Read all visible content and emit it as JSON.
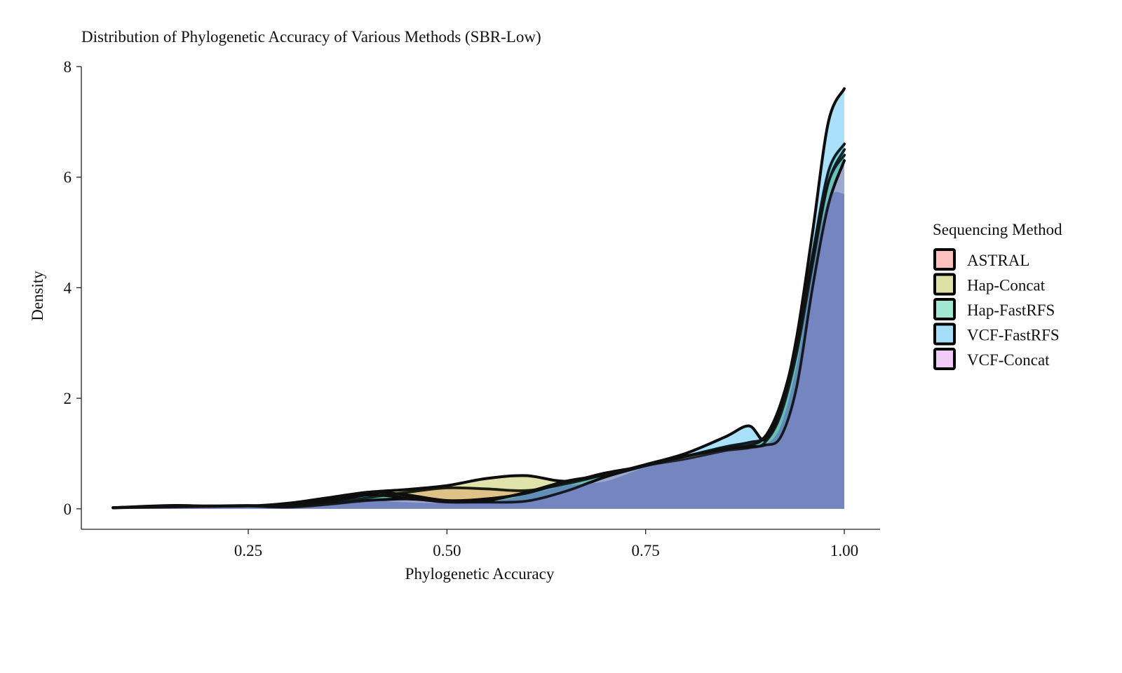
{
  "chart_data": {
    "type": "area",
    "subtype": "density",
    "title": "Distribution of Phylogenetic Accuracy of Various Methods (SBR-Low)",
    "xlabel": "Phylogenetic Accuracy",
    "ylabel": "Density",
    "xlim": [
      0.04,
      1.045
    ],
    "ylim": [
      -0.37,
      8.0
    ],
    "x_ticks": [
      0.25,
      0.5,
      0.75,
      1.0
    ],
    "x_tick_labels": [
      "0.25",
      "0.50",
      "0.75",
      "1.00"
    ],
    "y_ticks": [
      0,
      2,
      4,
      6,
      8
    ],
    "y_tick_labels": [
      "0",
      "2",
      "4",
      "6",
      "8"
    ],
    "grid": false,
    "legend": {
      "title": "Sequencing Method",
      "position": "right",
      "items": [
        "ASTRAL",
        "Hap-Concat",
        "Hap-FastRFS",
        "VCF-FastRFS",
        "VCF-Concat"
      ]
    },
    "series": [
      {
        "name": "ASTRAL",
        "fill": "#f8766d",
        "x": [
          0.08,
          0.15,
          0.2,
          0.25,
          0.3,
          0.35,
          0.4,
          0.45,
          0.5,
          0.55,
          0.6,
          0.65,
          0.7,
          0.75,
          0.8,
          0.85,
          0.88,
          0.9,
          0.92,
          0.94,
          0.96,
          0.98,
          1.0
        ],
        "y": [
          0.02,
          0.05,
          0.05,
          0.06,
          0.05,
          0.12,
          0.2,
          0.3,
          0.38,
          0.36,
          0.33,
          0.45,
          0.62,
          0.78,
          0.9,
          1.05,
          1.1,
          1.2,
          1.7,
          2.8,
          4.4,
          5.9,
          6.5
        ]
      },
      {
        "name": "Hap-Concat",
        "fill": "#b6bc3a",
        "x": [
          0.08,
          0.15,
          0.2,
          0.25,
          0.3,
          0.35,
          0.4,
          0.45,
          0.5,
          0.55,
          0.6,
          0.65,
          0.7,
          0.75,
          0.8,
          0.85,
          0.88,
          0.9,
          0.92,
          0.94,
          0.96,
          0.98,
          1.0
        ],
        "y": [
          0.02,
          0.04,
          0.05,
          0.05,
          0.1,
          0.2,
          0.3,
          0.35,
          0.42,
          0.55,
          0.6,
          0.5,
          0.65,
          0.78,
          0.95,
          1.12,
          1.2,
          1.3,
          1.8,
          2.9,
          4.5,
          5.9,
          6.4
        ]
      },
      {
        "name": "Hap-FastRFS",
        "fill": "#2fcc9b",
        "x": [
          0.08,
          0.15,
          0.2,
          0.25,
          0.3,
          0.35,
          0.4,
          0.45,
          0.5,
          0.55,
          0.6,
          0.65,
          0.7,
          0.75,
          0.8,
          0.85,
          0.88,
          0.9,
          0.92,
          0.94,
          0.96,
          0.98,
          1.0
        ],
        "y": [
          0.02,
          0.04,
          0.05,
          0.05,
          0.08,
          0.16,
          0.3,
          0.25,
          0.15,
          0.18,
          0.28,
          0.48,
          0.62,
          0.78,
          0.95,
          1.1,
          1.15,
          1.3,
          1.9,
          3.0,
          4.6,
          6.1,
          6.6
        ]
      },
      {
        "name": "VCF-FastRFS",
        "fill": "#35b5f0",
        "x": [
          0.08,
          0.15,
          0.2,
          0.25,
          0.3,
          0.35,
          0.4,
          0.45,
          0.5,
          0.55,
          0.6,
          0.65,
          0.7,
          0.75,
          0.8,
          0.85,
          0.88,
          0.9,
          0.92,
          0.94,
          0.96,
          0.98,
          1.0
        ],
        "y": [
          0.02,
          0.03,
          0.04,
          0.05,
          0.05,
          0.12,
          0.25,
          0.2,
          0.12,
          0.15,
          0.3,
          0.5,
          0.62,
          0.8,
          1.0,
          1.3,
          1.5,
          1.25,
          1.8,
          3.1,
          5.0,
          7.0,
          7.6
        ]
      },
      {
        "name": "VCF-Concat",
        "fill": "#e08cf0",
        "x": [
          0.08,
          0.15,
          0.2,
          0.25,
          0.3,
          0.35,
          0.4,
          0.45,
          0.5,
          0.55,
          0.6,
          0.65,
          0.7,
          0.75,
          0.8,
          0.85,
          0.88,
          0.9,
          0.92,
          0.94,
          0.96,
          0.98,
          1.0
        ],
        "y": [
          0.02,
          0.06,
          0.05,
          0.05,
          0.03,
          0.08,
          0.15,
          0.18,
          0.13,
          0.12,
          0.14,
          0.32,
          0.58,
          0.78,
          0.95,
          1.08,
          1.12,
          1.15,
          1.3,
          2.2,
          4.0,
          5.5,
          6.3
        ]
      }
    ],
    "overlay": {
      "fill": "#5b6db5",
      "x": [
        0.08,
        0.15,
        0.2,
        0.25,
        0.3,
        0.35,
        0.4,
        0.45,
        0.5,
        0.55,
        0.6,
        0.65,
        0.7,
        0.75,
        0.8,
        0.85,
        0.88,
        0.9,
        0.92,
        0.94,
        0.96,
        0.98,
        1.0
      ],
      "y": [
        0.02,
        0.03,
        0.03,
        0.04,
        0.05,
        0.1,
        0.15,
        0.12,
        0.1,
        0.12,
        0.25,
        0.42,
        0.5,
        0.75,
        0.88,
        1.05,
        1.1,
        1.15,
        1.5,
        2.6,
        4.3,
        5.6,
        5.7
      ]
    }
  }
}
